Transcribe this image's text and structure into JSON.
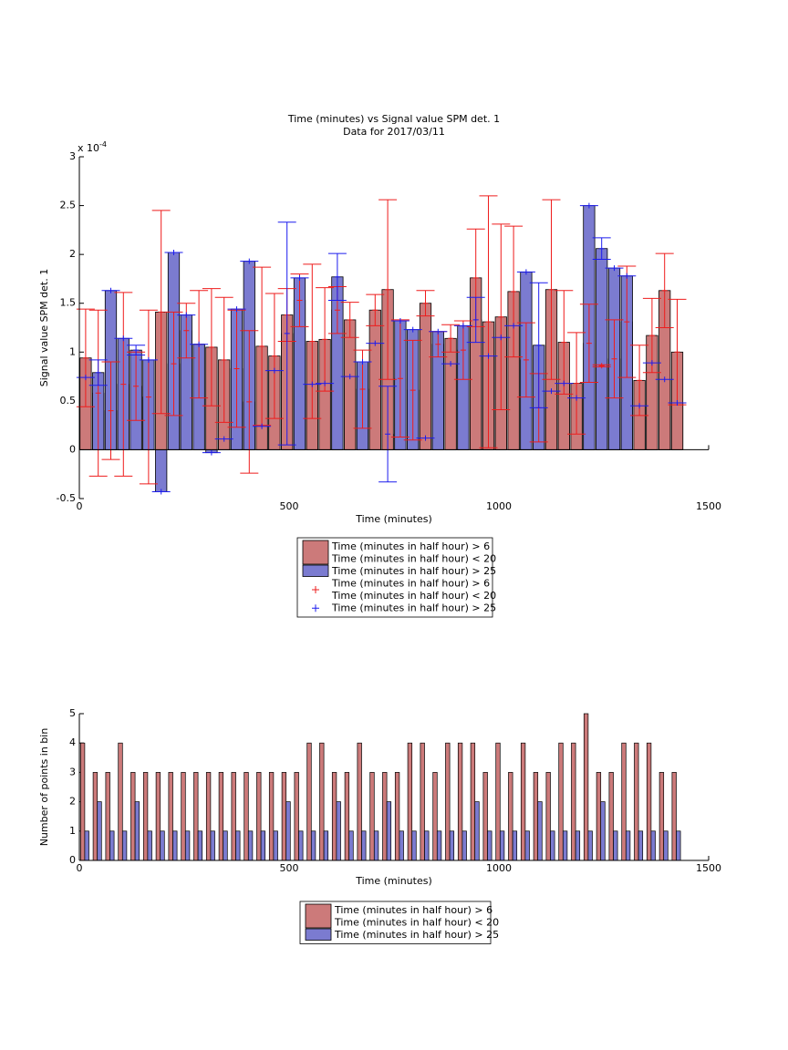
{
  "chart_data": [
    {
      "type": "bar",
      "title": "Time (minutes) vs Signal value SPM det. 1",
      "subtitle": "Data for 2017/03/11",
      "xlabel": "Time (minutes)",
      "ylabel": "Signal value SPM det. 1",
      "y_multiplier": "x 10",
      "y_multiplier_exponent": "-4",
      "x": [
        15,
        45,
        75,
        105,
        135,
        165,
        195,
        225,
        255,
        285,
        315,
        345,
        375,
        405,
        435,
        465,
        495,
        525,
        555,
        585,
        615,
        645,
        675,
        705,
        735,
        765,
        795,
        825,
        855,
        885,
        915,
        945,
        975,
        1005,
        1035,
        1065,
        1095,
        1125,
        1155,
        1185,
        1215,
        1245,
        1275,
        1305,
        1335,
        1365,
        1395,
        1425
      ],
      "xlim": [
        0,
        1500
      ],
      "xticks": [
        0,
        500,
        1000,
        1500
      ],
      "ylim": [
        -0.5,
        3
      ],
      "yticks": [
        -0.5,
        0,
        0.5,
        1,
        1.5,
        2,
        2.5,
        3
      ],
      "series": [
        {
          "name": "Time (minutes in half hour) > 6\nTime (minutes in half hour) < 20",
          "color": "#cc7a7a",
          "values": [
            0.94,
            0.58,
            0.4,
            0.67,
            0.65,
            0.54,
            1.41,
            0.88,
            1.22,
            1.08,
            1.05,
            0.92,
            0.83,
            0.49,
            1.06,
            0.96,
            1.38,
            1.53,
            1.11,
            1.13,
            1.43,
            1.33,
            0.62,
            1.43,
            1.64,
            0.73,
            0.61,
            1.5,
            1.08,
            1.14,
            1.02,
            1.76,
            1.31,
            1.36,
            1.62,
            0.92,
            0.43,
            1.64,
            1.1,
            0.68,
            1.09,
            0.86,
            0.93,
            1.31,
            0.71,
            1.17,
            1.63,
            1.0
          ],
          "errors": [
            0.5,
            0.85,
            0.5,
            0.94,
            0.35,
            0.89,
            1.04,
            0.53,
            0.28,
            0.55,
            0.6,
            0.64,
            0.6,
            0.73,
            0.81,
            0.64,
            0.27,
            0.27,
            0.79,
            0.53,
            0.24,
            0.18,
            0.4,
            0.16,
            0.92,
            0.6,
            0.51,
            0.13,
            0.13,
            0.14,
            0.3,
            0.5,
            1.29,
            0.95,
            0.67,
            0.38,
            0.35,
            0.92,
            0.53,
            0.52,
            0.4,
            0.01,
            0.4,
            0.57,
            0.36,
            0.38,
            0.38,
            0.54
          ]
        },
        {
          "name": "Time (minutes in half hour) > 25",
          "color": "#7b7bd0",
          "values": [
            0.74,
            0.79,
            1.63,
            1.14,
            1.02,
            0.92,
            -0.43,
            2.02,
            1.38,
            1.08,
            -0.03,
            0.11,
            1.44,
            1.93,
            0.24,
            0.81,
            1.19,
            1.76,
            0.67,
            0.68,
            1.77,
            0.75,
            0.9,
            1.09,
            0.16,
            1.32,
            1.23,
            0.12,
            1.21,
            0.88,
            1.27,
            1.33,
            0.96,
            1.15,
            1.27,
            1.82,
            1.07,
            0.6,
            0.68,
            0.53,
            2.5,
            2.06,
            1.86,
            1.78,
            0.45,
            0.89,
            0.72,
            0.48
          ],
          "errors": [
            0,
            0.13,
            0,
            0,
            0.05,
            0,
            0,
            0,
            0,
            0,
            0,
            0,
            0,
            0,
            0,
            0,
            1.14,
            0,
            0,
            0,
            0.24,
            0,
            0,
            0,
            0.49,
            0,
            0,
            0,
            0,
            0,
            0,
            0.23,
            0,
            0,
            0,
            0,
            0.64,
            0,
            0,
            0,
            0,
            0.11,
            0,
            0,
            0,
            0,
            0,
            0
          ]
        }
      ],
      "errorbar_legend": [
        {
          "name": "Time (minutes in half hour) > 6\nTime (minutes in half hour) < 20",
          "color": "#ee1c1c"
        },
        {
          "name": "Time (minutes in half hour) > 25",
          "color": "#1c1cee"
        }
      ],
      "legend_position": "below"
    },
    {
      "type": "grouped_bar",
      "xlabel": "Time (minutes)",
      "ylabel": "Number of points in bin",
      "x": [
        15,
        45,
        75,
        105,
        135,
        165,
        195,
        225,
        255,
        285,
        315,
        345,
        375,
        405,
        435,
        465,
        495,
        525,
        555,
        585,
        615,
        645,
        675,
        705,
        735,
        765,
        795,
        825,
        855,
        885,
        915,
        945,
        975,
        1005,
        1035,
        1065,
        1095,
        1125,
        1155,
        1185,
        1215,
        1245,
        1275,
        1305,
        1335,
        1365,
        1395,
        1425
      ],
      "xlim": [
        0,
        1500
      ],
      "xticks": [
        0,
        500,
        1000,
        1500
      ],
      "ylim": [
        0,
        5
      ],
      "yticks": [
        0,
        1,
        2,
        3,
        4,
        5
      ],
      "series": [
        {
          "name": "Time (minutes in half hour) > 6\nTime (minutes in half hour) < 20",
          "color": "#cc7a7a",
          "values": [
            4,
            3,
            3,
            4,
            3,
            3,
            3,
            3,
            3,
            3,
            3,
            3,
            3,
            3,
            3,
            3,
            3,
            3,
            4,
            4,
            3,
            3,
            4,
            3,
            3,
            3,
            4,
            4,
            3,
            4,
            4,
            4,
            3,
            4,
            3,
            4,
            3,
            3,
            4,
            4,
            5,
            3,
            3,
            4,
            4,
            4,
            3,
            3
          ]
        },
        {
          "name": "Time (minutes in half hour) > 25",
          "color": "#7b7bd0",
          "values": [
            1,
            2,
            1,
            1,
            2,
            1,
            1,
            1,
            1,
            1,
            1,
            1,
            1,
            1,
            1,
            1,
            2,
            1,
            1,
            1,
            2,
            1,
            1,
            1,
            2,
            1,
            1,
            1,
            1,
            1,
            1,
            2,
            1,
            1,
            1,
            1,
            2,
            1,
            1,
            1,
            1,
            2,
            1,
            1,
            1,
            1,
            1,
            1
          ]
        }
      ],
      "legend_position": "below"
    }
  ]
}
